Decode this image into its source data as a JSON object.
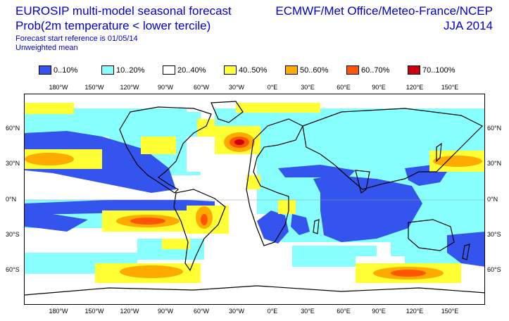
{
  "header": {
    "title_line1": "EUROSIP multi-model seasonal forecast",
    "title_line2": "Prob(2m temperature < lower tercile)",
    "title_line3": "Forecast start reference is 01/05/14",
    "title_line4": "Unweighted mean",
    "source_line1": "ECMWF/Met Office/Meteo-France/NCEP",
    "source_line2": "JJA 2014"
  },
  "legend": {
    "items": [
      {
        "label": "0..10%",
        "color": "#3355ee"
      },
      {
        "label": "10..20%",
        "color": "#88ffff"
      },
      {
        "label": "20..40%",
        "color": "#ffffff"
      },
      {
        "label": "40..50%",
        "color": "#ffff33"
      },
      {
        "label": "50..60%",
        "color": "#ffaa00"
      },
      {
        "label": "60..70%",
        "color": "#ff5500"
      },
      {
        "label": "70..100%",
        "color": "#cc0011"
      }
    ]
  },
  "axes": {
    "lon_labels": [
      "180°W",
      "150°W",
      "120°W",
      "90°W",
      "60°W",
      "30°W",
      "0°E",
      "30°E",
      "60°E",
      "90°E",
      "120°E",
      "150°E"
    ],
    "lat_labels": [
      "60°N",
      "30°N",
      "0°N",
      "30°S",
      "60°S"
    ]
  }
}
